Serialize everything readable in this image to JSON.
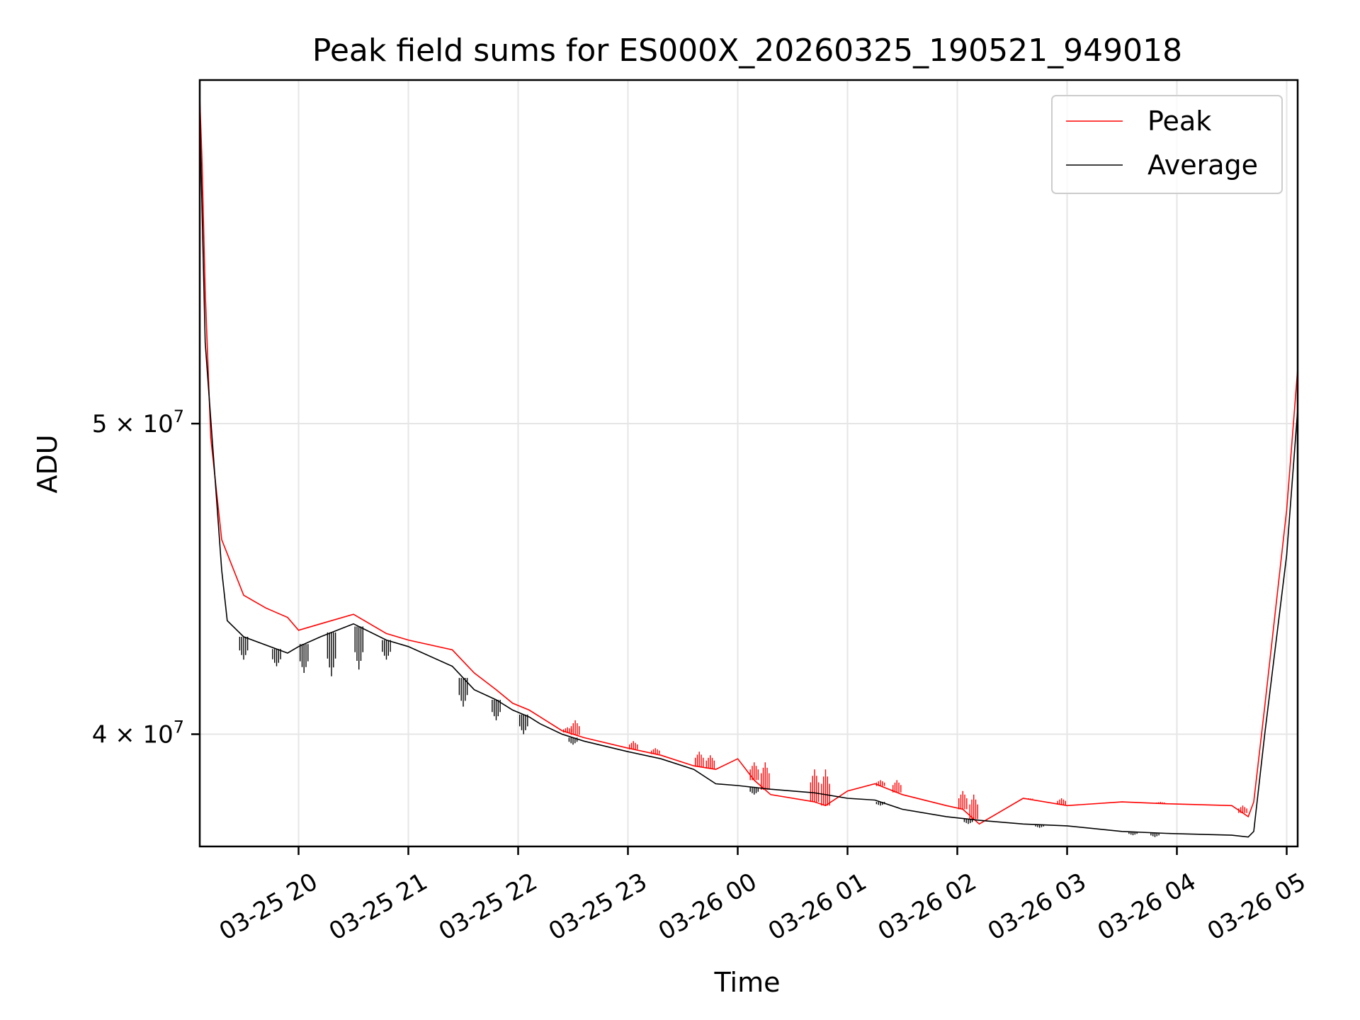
{
  "chart_data": {
    "type": "line",
    "title": "Peak field sums for ES000X_20260325_190521_949018",
    "xlabel": "Time",
    "ylabel": "ADU",
    "yscale": "log",
    "ylim": [
      36900000,
      64000000
    ],
    "xlim_hours": [
      19.1,
      29.1
    ],
    "grid": true,
    "legend_position": "upper right",
    "x_ticks": [
      {
        "label": "03-25 20",
        "hours": 20
      },
      {
        "label": "03-25 21",
        "hours": 21
      },
      {
        "label": "03-25 22",
        "hours": 22
      },
      {
        "label": "03-25 23",
        "hours": 23
      },
      {
        "label": "03-26 00",
        "hours": 24
      },
      {
        "label": "03-26 01",
        "hours": 25
      },
      {
        "label": "03-26 02",
        "hours": 26
      },
      {
        "label": "03-26 03",
        "hours": 27
      },
      {
        "label": "03-26 04",
        "hours": 28
      },
      {
        "label": "03-26 05",
        "hours": 29
      }
    ],
    "y_ticks": [
      {
        "label": "4 × 10⁷",
        "mantissa": "4 × 10",
        "exp": "7",
        "value": 40000000
      },
      {
        "label": "5 × 10⁷",
        "mantissa": "5 × 10",
        "exp": "7",
        "value": 50000000
      }
    ],
    "series": [
      {
        "name": "Peak",
        "color": "#ff0000",
        "x": [
          19.1,
          19.12,
          19.15,
          19.2,
          19.3,
          19.5,
          19.7,
          19.9,
          20.0,
          20.2,
          20.5,
          20.8,
          21.0,
          21.4,
          21.6,
          21.8,
          21.95,
          22.1,
          22.2,
          22.4,
          22.6,
          23.0,
          23.3,
          23.6,
          23.8,
          24.0,
          24.15,
          24.3,
          24.7,
          24.8,
          25.0,
          25.25,
          25.5,
          25.9,
          26.05,
          26.2,
          26.6,
          27.0,
          27.5,
          27.9,
          28.5,
          28.65,
          28.7,
          28.8,
          29.0,
          29.1
        ],
        "y": [
          63200000,
          60500000,
          55000000,
          49500000,
          46000000,
          44200000,
          43800000,
          43500000,
          43100000,
          43300000,
          43600000,
          43000000,
          42800000,
          42500000,
          41800000,
          41300000,
          40900000,
          40700000,
          40500000,
          40100000,
          39900000,
          39600000,
          39400000,
          39100000,
          39000000,
          39300000,
          38700000,
          38300000,
          38100000,
          38000000,
          38400000,
          38600000,
          38300000,
          38000000,
          37900000,
          37500000,
          38200000,
          38000000,
          38100000,
          38050000,
          38000000,
          37700000,
          38100000,
          40800000,
          47000000,
          52000000
        ],
        "spikes": [
          [
            22.45,
            40200000
          ],
          [
            22.52,
            40400000
          ],
          [
            23.05,
            39800000
          ],
          [
            23.25,
            39600000
          ],
          [
            23.65,
            39500000
          ],
          [
            23.75,
            39400000
          ],
          [
            24.15,
            39200000
          ],
          [
            24.25,
            39200000
          ],
          [
            24.7,
            39000000
          ],
          [
            24.8,
            39000000
          ],
          [
            25.3,
            38700000
          ],
          [
            25.45,
            38700000
          ],
          [
            26.05,
            38400000
          ],
          [
            26.15,
            38300000
          ],
          [
            26.65,
            38200000
          ],
          [
            26.95,
            38200000
          ],
          [
            27.5,
            38100000
          ],
          [
            27.85,
            38100000
          ],
          [
            28.6,
            38000000
          ]
        ]
      },
      {
        "name": "Average",
        "color": "#000000",
        "x": [
          19.1,
          19.12,
          19.15,
          19.3,
          19.35,
          19.5,
          19.9,
          20.0,
          20.2,
          20.5,
          20.8,
          21.0,
          21.4,
          21.6,
          21.8,
          21.95,
          22.1,
          22.2,
          22.4,
          22.6,
          23.0,
          23.3,
          23.6,
          23.8,
          24.0,
          24.3,
          24.7,
          24.8,
          25.0,
          25.25,
          25.5,
          25.9,
          26.2,
          26.6,
          27.0,
          27.5,
          27.9,
          28.5,
          28.65,
          28.7,
          28.8,
          29.0,
          29.1
        ],
        "y": [
          62500000,
          58500000,
          53000000,
          45000000,
          43400000,
          42900000,
          42400000,
          42600000,
          42900000,
          43300000,
          42800000,
          42600000,
          42000000,
          41300000,
          41000000,
          40700000,
          40500000,
          40300000,
          40000000,
          39800000,
          39500000,
          39300000,
          39000000,
          38600000,
          38550000,
          38450000,
          38350000,
          38300000,
          38200000,
          38150000,
          37900000,
          37700000,
          37600000,
          37500000,
          37450000,
          37300000,
          37250000,
          37200000,
          37150000,
          37300000,
          40000000,
          45500000,
          50500000
        ],
        "spikes": [
          [
            19.5,
            42200000
          ],
          [
            19.8,
            42000000
          ],
          [
            20.05,
            41800000
          ],
          [
            20.3,
            41700000
          ],
          [
            20.55,
            41900000
          ],
          [
            20.8,
            42200000
          ],
          [
            21.5,
            40800000
          ],
          [
            21.8,
            40400000
          ],
          [
            22.05,
            40000000
          ],
          [
            22.5,
            39700000
          ],
          [
            24.15,
            38300000
          ],
          [
            25.3,
            38000000
          ],
          [
            26.1,
            37500000
          ],
          [
            26.75,
            37400000
          ],
          [
            27.6,
            37200000
          ],
          [
            27.8,
            37150000
          ]
        ]
      }
    ]
  }
}
